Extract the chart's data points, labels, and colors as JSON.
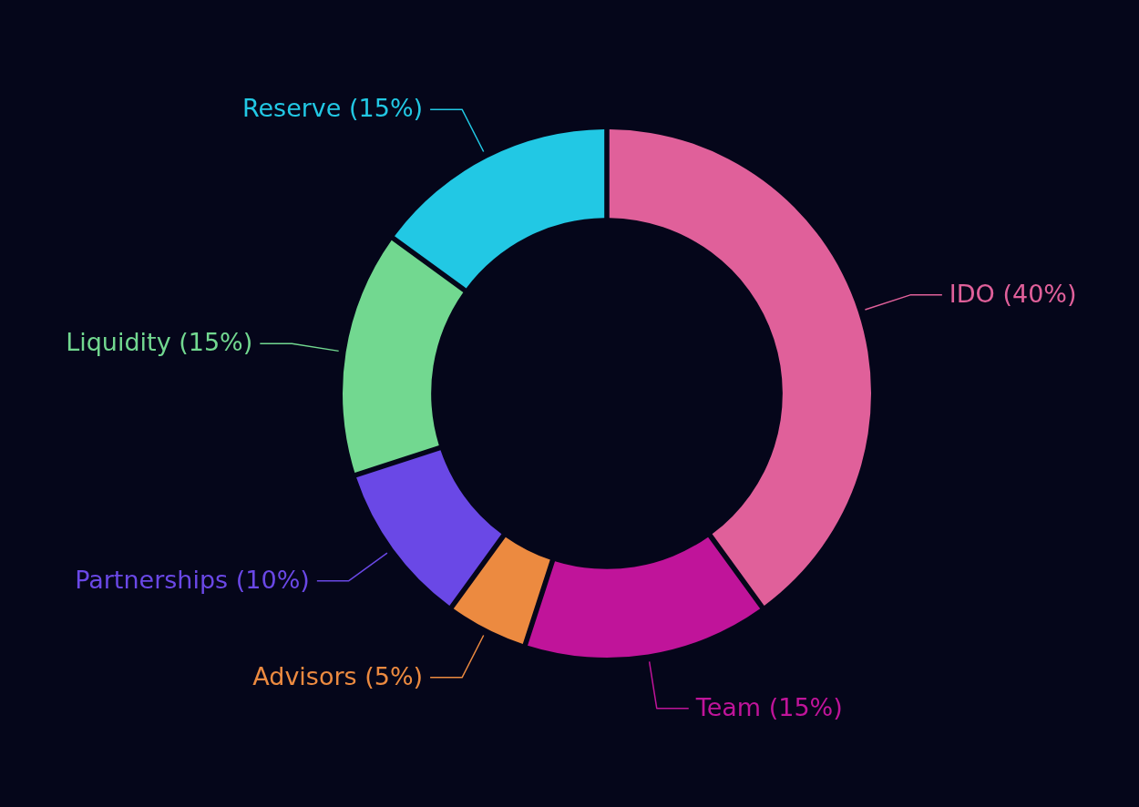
{
  "chart_data": {
    "type": "donut",
    "categories": [
      "IDO",
      "Team",
      "Advisors",
      "Partnerships",
      "Liquidity",
      "Reserve"
    ],
    "values": [
      40,
      15,
      5,
      10,
      15,
      15
    ],
    "value_labels": [
      "(40%)",
      "(15%)",
      "(5%)",
      "(10%)",
      "(15%)",
      "(15%)"
    ],
    "colors": [
      "#e0609a",
      "#c0149a",
      "#ec8a40",
      "#6a48e6",
      "#72d890",
      "#22c8e4"
    ]
  }
}
